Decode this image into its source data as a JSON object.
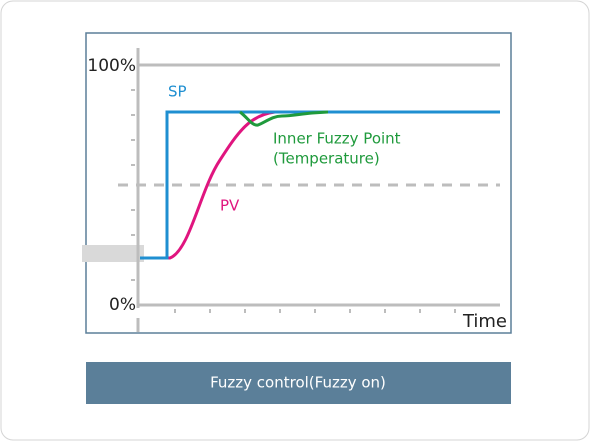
{
  "diagram": {
    "y_axis": {
      "top_label": "100%",
      "bottom_label": "0%"
    },
    "x_axis": {
      "label": "Time"
    },
    "curves": {
      "sp": "SP",
      "pv": "PV",
      "fuzzy": [
        "Inner Fuzzy Point",
        "(Temperature)"
      ]
    },
    "caption": "Fuzzy control(Fuzzy on)"
  }
}
